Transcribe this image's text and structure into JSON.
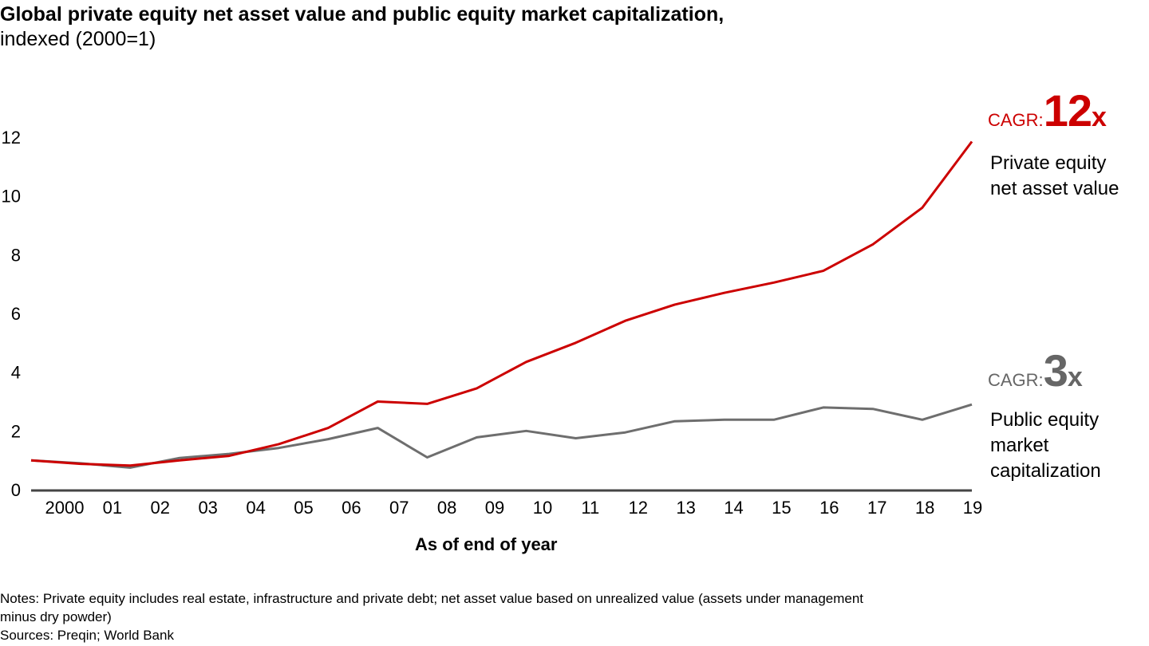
{
  "title": {
    "line1": "Global private equity net asset value and public equity market capitalization,",
    "line2": "indexed (2000=1)"
  },
  "colors": {
    "private_equity": "#cc0000",
    "public_equity": "#6e6e6e",
    "axis": "#444444"
  },
  "annotations": {
    "pe_cagr_prefix": "CAGR:",
    "pe_cagr_value": "12",
    "pe_cagr_suffix": "x",
    "pe_label": "Private equity net asset value",
    "pub_cagr_prefix": "CAGR:",
    "pub_cagr_value": "3",
    "pub_cagr_suffix": "x",
    "pub_label_lines": [
      "Public equity",
      "market",
      "capitalization"
    ]
  },
  "notes": {
    "line1": "Notes: Private equity includes real estate, infrastructure and private debt; net asset value based on unrealized value (assets under management",
    "line2": "minus dry powder)",
    "line3": "Sources: Preqin; World Bank"
  },
  "chart_data": {
    "type": "line",
    "title": "Global private equity net asset value and public equity market capitalization, indexed (2000=1)",
    "xlabel": "As of end of year",
    "ylabel": "",
    "categories": [
      "2000",
      "01",
      "02",
      "03",
      "04",
      "05",
      "06",
      "07",
      "08",
      "09",
      "10",
      "11",
      "12",
      "13",
      "14",
      "15",
      "16",
      "17",
      "18",
      "19"
    ],
    "yticks": [
      0,
      2,
      4,
      6,
      8,
      10,
      12
    ],
    "ylim": [
      0,
      12
    ],
    "grid": false,
    "legend": "direct-labels-right",
    "series": [
      {
        "name": "Private equity net asset value",
        "color": "#cc0000",
        "values": [
          1.0,
          0.88,
          0.82,
          1.0,
          1.15,
          1.55,
          2.1,
          3.0,
          2.92,
          3.45,
          4.35,
          5.0,
          5.75,
          6.3,
          6.7,
          7.05,
          7.45,
          8.35,
          9.6,
          11.85
        ]
      },
      {
        "name": "Public equity market capitalization",
        "color": "#6e6e6e",
        "values": [
          1.0,
          0.9,
          0.75,
          1.08,
          1.22,
          1.42,
          1.72,
          2.1,
          1.1,
          1.78,
          2.0,
          1.75,
          1.95,
          2.33,
          2.38,
          2.38,
          2.8,
          2.75,
          2.38,
          2.9
        ]
      }
    ]
  }
}
